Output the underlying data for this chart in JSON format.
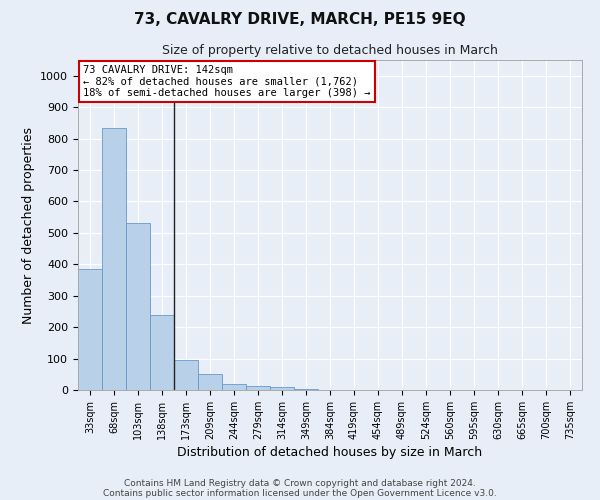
{
  "title": "73, CAVALRY DRIVE, MARCH, PE15 9EQ",
  "subtitle": "Size of property relative to detached houses in March",
  "xlabel": "Distribution of detached houses by size in March",
  "ylabel": "Number of detached properties",
  "bar_color": "#b8d0e8",
  "bar_edge_color": "#6699cc",
  "categories": [
    "33sqm",
    "68sqm",
    "103sqm",
    "138sqm",
    "173sqm",
    "209sqm",
    "244sqm",
    "279sqm",
    "314sqm",
    "349sqm",
    "384sqm",
    "419sqm",
    "454sqm",
    "489sqm",
    "524sqm",
    "560sqm",
    "595sqm",
    "630sqm",
    "665sqm",
    "700sqm",
    "735sqm"
  ],
  "values": [
    385,
    835,
    530,
    240,
    95,
    52,
    18,
    13,
    10,
    2,
    0,
    0,
    0,
    0,
    0,
    0,
    0,
    0,
    0,
    0,
    0
  ],
  "ylim": [
    0,
    1050
  ],
  "yticks": [
    0,
    100,
    200,
    300,
    400,
    500,
    600,
    700,
    800,
    900,
    1000
  ],
  "annotation_title": "73 CAVALRY DRIVE: 142sqm",
  "annotation_line1": "← 82% of detached houses are smaller (1,762)",
  "annotation_line2": "18% of semi-detached houses are larger (398) →",
  "footer1": "Contains HM Land Registry data © Crown copyright and database right 2024.",
  "footer2": "Contains public sector information licensed under the Open Government Licence v3.0.",
  "bg_color": "#e8eef8",
  "grid_color": "#ffffff",
  "annotation_box_color": "#ffffff",
  "annotation_box_edge": "#cc0000",
  "property_line_idx": 3
}
